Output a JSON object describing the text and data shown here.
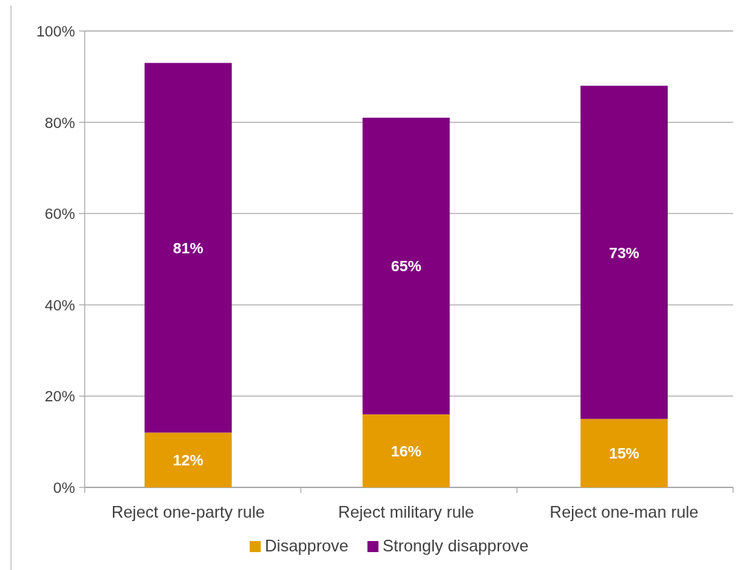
{
  "chart_data": {
    "type": "bar",
    "stacked": true,
    "categories": [
      "Reject one-party rule",
      "Reject military rule",
      "Reject one-man rule"
    ],
    "series": [
      {
        "name": "Disapprove",
        "color": "#e59c00",
        "values": [
          12,
          16,
          15
        ],
        "value_labels": [
          "12%",
          "16%",
          "15%"
        ]
      },
      {
        "name": "Strongly disapprove",
        "color": "#800080",
        "values": [
          81,
          65,
          73
        ],
        "value_labels": [
          "81%",
          "65%",
          "73%"
        ]
      }
    ],
    "ylim": [
      0,
      100
    ],
    "yticks": [
      {
        "value": 0,
        "label": "0%"
      },
      {
        "value": 20,
        "label": "20%"
      },
      {
        "value": 40,
        "label": "40%"
      },
      {
        "value": 60,
        "label": "60%"
      },
      {
        "value": 80,
        "label": "80%"
      },
      {
        "value": 100,
        "label": "100%"
      }
    ],
    "grid": "y",
    "legend": "bottom"
  }
}
